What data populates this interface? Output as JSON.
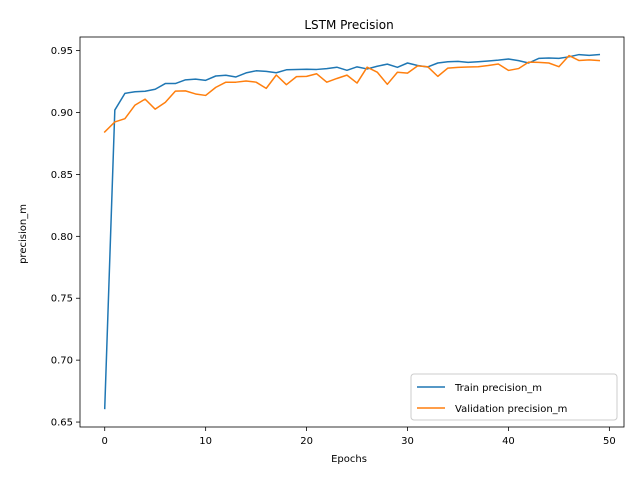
{
  "chart_data": {
    "type": "line",
    "title": "LSTM Precision",
    "xlabel": "Epochs",
    "ylabel": "precision_m",
    "xlim": [
      -2.45,
      51.45
    ],
    "ylim": [
      0.646,
      0.961
    ],
    "xticks": [
      0,
      10,
      20,
      30,
      40,
      50
    ],
    "yticks": [
      0.65,
      0.7,
      0.75,
      0.8,
      0.85,
      0.9,
      0.95
    ],
    "ytick_labels": [
      "0.65",
      "0.70",
      "0.75",
      "0.80",
      "0.85",
      "0.90",
      "0.95"
    ],
    "grid": false,
    "legend_position": "lower-right",
    "x": [
      0,
      1,
      2,
      3,
      4,
      5,
      6,
      7,
      8,
      9,
      10,
      11,
      12,
      13,
      14,
      15,
      16,
      17,
      18,
      19,
      20,
      21,
      22,
      23,
      24,
      25,
      26,
      27,
      28,
      29,
      30,
      31,
      32,
      33,
      34,
      35,
      36,
      37,
      38,
      39,
      40,
      41,
      42,
      43,
      44,
      45,
      46,
      47,
      48,
      49
    ],
    "series": [
      {
        "name": "Train precision_m",
        "color": "#1f77b4",
        "values": [
          0.661,
          0.902,
          0.9155,
          0.9168,
          0.9172,
          0.9188,
          0.9234,
          0.9234,
          0.9264,
          0.927,
          0.926,
          0.9295,
          0.9301,
          0.9287,
          0.932,
          0.9337,
          0.9332,
          0.9321,
          0.9345,
          0.9348,
          0.935,
          0.9348,
          0.9355,
          0.9366,
          0.9341,
          0.9369,
          0.9352,
          0.9374,
          0.9391,
          0.9365,
          0.94,
          0.938,
          0.9368,
          0.94,
          0.941,
          0.9413,
          0.9405,
          0.941,
          0.9416,
          0.9423,
          0.9432,
          0.9419,
          0.94,
          0.9437,
          0.944,
          0.9437,
          0.945,
          0.9468,
          0.9462,
          0.9468
        ]
      },
      {
        "name": "Validation precision_m",
        "color": "#ff7f0e",
        "values": [
          0.8843,
          0.8924,
          0.895,
          0.906,
          0.9108,
          0.9027,
          0.9082,
          0.9173,
          0.9175,
          0.915,
          0.9138,
          0.9203,
          0.9245,
          0.9245,
          0.9255,
          0.9245,
          0.9195,
          0.9303,
          0.9225,
          0.929,
          0.9292,
          0.9313,
          0.9245,
          0.9275,
          0.9302,
          0.9238,
          0.9366,
          0.9326,
          0.9228,
          0.9325,
          0.9318,
          0.9377,
          0.937,
          0.9292,
          0.9359,
          0.9365,
          0.9368,
          0.937,
          0.938,
          0.9392,
          0.934,
          0.9355,
          0.9407,
          0.9405,
          0.94,
          0.937,
          0.946,
          0.942,
          0.9425,
          0.942
        ]
      }
    ]
  }
}
